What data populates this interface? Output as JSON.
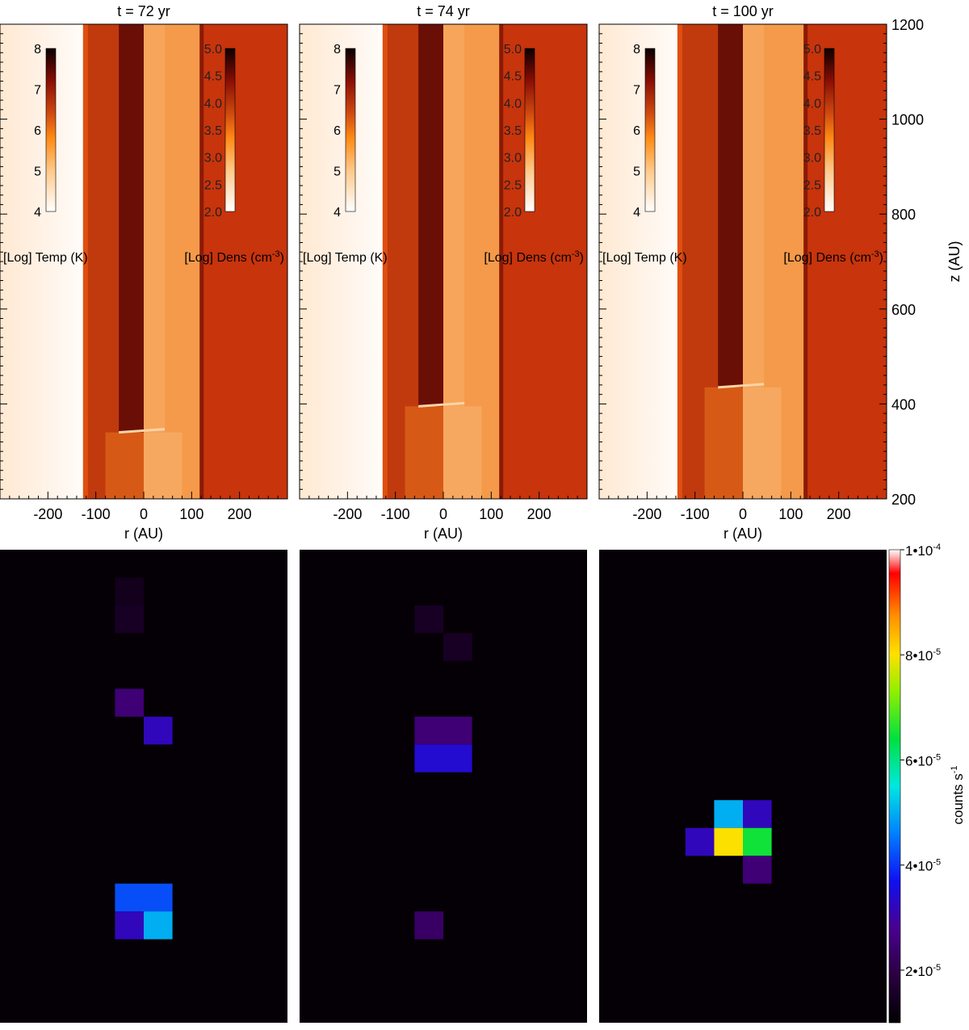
{
  "chart_data": [
    {
      "type": "heatmap",
      "panel": "simulation",
      "title": "t = 72 yr",
      "xlabel": "r (AU)",
      "xlim": [
        -300,
        300
      ],
      "ylim": [
        200,
        1200
      ],
      "xticks": [
        -200,
        -100,
        0,
        100,
        200
      ],
      "left_half": "temperature",
      "right_half": "density",
      "shock_z": 340,
      "jet_top": 1200,
      "inner_radius": 80,
      "outer_radius": 120,
      "temp_colorbar": {
        "label": "[Log] Temp (K)",
        "ticks": [
          4,
          5,
          6,
          7,
          8
        ],
        "range": [
          4,
          8
        ]
      },
      "dens_colorbar": {
        "label": "[Log] Dens (cm",
        "label_exp": "-3",
        "label_end": ")",
        "ticks": [
          "2.0",
          "2.5",
          "3.0",
          "3.5",
          "4.0",
          "4.5",
          "5.0"
        ],
        "range": [
          2.0,
          5.0
        ]
      }
    },
    {
      "type": "heatmap",
      "panel": "simulation",
      "title": "t = 74 yr",
      "xlabel": "r (AU)",
      "xlim": [
        -300,
        300
      ],
      "ylim": [
        200,
        1200
      ],
      "xticks": [
        -200,
        -100,
        0,
        100,
        200
      ],
      "left_half": "temperature",
      "right_half": "density",
      "shock_z": 395,
      "jet_top": 1200,
      "inner_radius": 80,
      "outer_radius": 120,
      "temp_colorbar": {
        "label": "[Log] Temp (K)",
        "ticks": [
          4,
          5,
          6,
          7,
          8
        ],
        "range": [
          4,
          8
        ]
      },
      "dens_colorbar": {
        "label": "[Log] Dens (cm",
        "label_exp": "-3",
        "label_end": ")",
        "ticks": [
          "2.0",
          "2.5",
          "3.0",
          "3.5",
          "4.0",
          "4.5",
          "5.0"
        ],
        "range": [
          2.0,
          5.0
        ]
      }
    },
    {
      "type": "heatmap",
      "panel": "simulation",
      "title": "t = 100 yr",
      "xlabel": "r (AU)",
      "ylabel": "z (AU)",
      "xlim": [
        -300,
        300
      ],
      "ylim": [
        200,
        1200
      ],
      "xticks": [
        -200,
        -100,
        0,
        100,
        200
      ],
      "yticks": [
        200,
        400,
        600,
        800,
        1000,
        1200
      ],
      "left_half": "temperature",
      "right_half": "density",
      "shock_z": 435,
      "jet_top": 1200,
      "inner_radius": 80,
      "outer_radius": 130,
      "temp_colorbar": {
        "label": "[Log] Temp (K)",
        "ticks": [
          4,
          5,
          6,
          7,
          8
        ],
        "range": [
          4,
          8
        ]
      },
      "dens_colorbar": {
        "label": "[Log] Dens (cm",
        "label_exp": "-3",
        "label_end": ")",
        "ticks": [
          "2.0",
          "2.5",
          "3.0",
          "3.5",
          "4.0",
          "4.5",
          "5.0"
        ],
        "range": [
          2.0,
          5.0
        ]
      }
    },
    {
      "type": "heatmap",
      "panel": "counts",
      "description_units": "counts per second per pixel",
      "grid_cols": 10,
      "grid_rows": 17,
      "cells": [
        {
          "col": 4,
          "row": 1,
          "value": 1.4e-05
        },
        {
          "col": 4,
          "row": 2,
          "value": 1.5e-05
        },
        {
          "col": 4,
          "row": 5,
          "value": 2.5e-05
        },
        {
          "col": 5,
          "row": 6,
          "value": 3.2e-05
        },
        {
          "col": 4,
          "row": 12,
          "value": 4.2e-05
        },
        {
          "col": 5,
          "row": 12,
          "value": 4.2e-05
        },
        {
          "col": 4,
          "row": 13,
          "value": 3.2e-05
        },
        {
          "col": 5,
          "row": 13,
          "value": 5e-05
        }
      ]
    },
    {
      "type": "heatmap",
      "panel": "counts",
      "grid_cols": 10,
      "grid_rows": 17,
      "cells": [
        {
          "col": 4,
          "row": 2,
          "value": 1.5e-05
        },
        {
          "col": 5,
          "row": 3,
          "value": 1.5e-05
        },
        {
          "col": 4,
          "row": 6,
          "value": 2.5e-05
        },
        {
          "col": 5,
          "row": 6,
          "value": 2.5e-05
        },
        {
          "col": 4,
          "row": 7,
          "value": 3.4e-05
        },
        {
          "col": 5,
          "row": 7,
          "value": 3.4e-05
        },
        {
          "col": 4,
          "row": 13,
          "value": 2.3e-05
        }
      ]
    },
    {
      "type": "heatmap",
      "panel": "counts",
      "grid_cols": 10,
      "grid_rows": 17,
      "cells": [
        {
          "col": 4,
          "row": 9,
          "value": 5e-05
        },
        {
          "col": 5,
          "row": 9,
          "value": 3.2e-05
        },
        {
          "col": 3,
          "row": 10,
          "value": 3.2e-05
        },
        {
          "col": 4,
          "row": 10,
          "value": 8e-05
        },
        {
          "col": 5,
          "row": 10,
          "value": 6.5e-05
        },
        {
          "col": 5,
          "row": 11,
          "value": 2.5e-05
        }
      ],
      "colorbar": {
        "label_base": "counts s",
        "label_exp": "-1",
        "range": [
          1e-05,
          0.0001
        ],
        "ticks": [
          {
            "value": 2e-05,
            "mant": "2•10",
            "exp": "-5"
          },
          {
            "value": 4e-05,
            "mant": "4•10",
            "exp": "-5"
          },
          {
            "value": 6e-05,
            "mant": "6•10",
            "exp": "-5"
          },
          {
            "value": 8e-05,
            "mant": "8•10",
            "exp": "-5"
          },
          {
            "value": 0.0001,
            "mant": "1•10",
            "exp": "-4"
          }
        ]
      }
    }
  ]
}
